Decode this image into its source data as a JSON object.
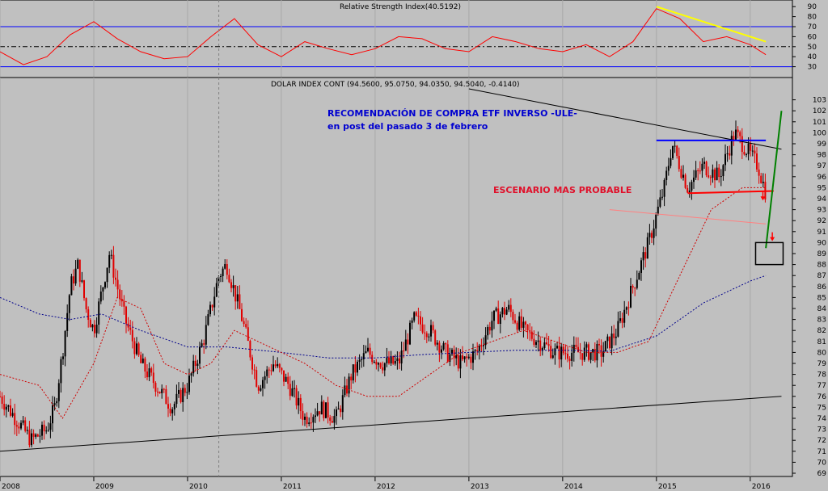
{
  "chart_data": [
    {
      "type": "line",
      "title": "Relative Strength Index(40.5192)",
      "ylim": [
        20,
        95
      ],
      "y_ticks": [
        90,
        80,
        70,
        60,
        50,
        40,
        30
      ],
      "reference_lines": [
        70,
        50,
        30
      ],
      "trendline": {
        "from": [
          "2015-01",
          90
        ],
        "to": [
          "2016-03",
          55
        ],
        "color": "#ffff00"
      },
      "x": [
        "2008-01",
        "2008-04",
        "2008-07",
        "2008-10",
        "2009-01",
        "2009-04",
        "2009-07",
        "2009-10",
        "2010-01",
        "2010-04",
        "2010-07",
        "2010-10",
        "2011-01",
        "2011-04",
        "2011-07",
        "2011-10",
        "2012-01",
        "2012-04",
        "2012-07",
        "2012-10",
        "2013-01",
        "2013-04",
        "2013-07",
        "2013-10",
        "2014-01",
        "2014-04",
        "2014-07",
        "2014-10",
        "2015-01",
        "2015-04",
        "2015-07",
        "2015-10",
        "2016-01",
        "2016-03"
      ],
      "values": [
        45,
        32,
        40,
        62,
        75,
        58,
        45,
        38,
        40,
        60,
        78,
        52,
        40,
        55,
        48,
        42,
        48,
        60,
        58,
        48,
        45,
        60,
        55,
        48,
        45,
        52,
        40,
        55,
        88,
        78,
        55,
        60,
        52,
        42
      ]
    },
    {
      "type": "candlestick",
      "title": "DOLAR INDEX CONT (94.5600, 95.0750, 94.0350, 94.5040, -0.4140)",
      "ylim": [
        69,
        104
      ],
      "y_ticks": [
        103,
        102,
        101,
        100,
        99,
        98,
        97,
        96,
        95,
        94,
        93,
        92,
        91,
        90,
        89,
        88,
        87,
        86,
        85,
        84,
        83,
        82,
        81,
        80,
        79,
        78,
        77,
        76,
        75,
        74,
        73,
        72,
        71,
        70,
        69
      ],
      "x_ticks": [
        "2008",
        "2009",
        "2010",
        "2011",
        "2012",
        "2013",
        "2014",
        "2015",
        "2016"
      ],
      "series": [
        {
          "name": "price",
          "x": [
            "2008-01",
            "2008-03",
            "2008-05",
            "2008-07",
            "2008-08",
            "2008-09",
            "2008-10",
            "2008-11",
            "2008-12",
            "2009-01",
            "2009-03",
            "2009-05",
            "2009-07",
            "2009-09",
            "2009-11",
            "2010-01",
            "2010-03",
            "2010-05",
            "2010-06",
            "2010-08",
            "2010-10",
            "2010-12",
            "2011-02",
            "2011-04",
            "2011-06",
            "2011-08",
            "2011-10",
            "2011-12",
            "2012-02",
            "2012-04",
            "2012-06",
            "2012-08",
            "2012-10",
            "2012-12",
            "2013-02",
            "2013-04",
            "2013-06",
            "2013-08",
            "2013-10",
            "2013-12",
            "2014-02",
            "2014-04",
            "2014-06",
            "2014-08",
            "2014-10",
            "2014-12",
            "2015-02",
            "2015-03",
            "2015-05",
            "2015-07",
            "2015-09",
            "2015-11",
            "2015-12",
            "2016-01",
            "2016-02",
            "2016-03"
          ],
          "values": [
            76,
            74,
            72,
            73,
            75,
            80,
            86,
            88,
            84,
            82,
            89,
            83,
            79,
            77,
            75,
            77,
            81,
            87,
            88,
            83,
            77,
            79,
            77,
            74,
            75,
            74,
            78,
            80,
            79,
            79,
            83,
            82,
            80,
            79,
            80,
            83,
            84,
            82,
            81,
            80,
            80,
            80,
            80,
            82,
            86,
            90,
            95,
            99,
            95,
            97,
            96,
            100,
            99,
            98,
            97,
            94.5
          ]
        },
        {
          "name": "ma_short",
          "x": [
            "2008-01",
            "2008-06",
            "2008-09",
            "2009-01",
            "2009-04",
            "2009-07",
            "2009-10",
            "2010-01",
            "2010-04",
            "2010-07",
            "2010-10",
            "2011-01",
            "2011-04",
            "2011-08",
            "2011-12",
            "2012-04",
            "2012-08",
            "2012-12",
            "2013-04",
            "2013-08",
            "2013-12",
            "2014-04",
            "2014-08",
            "2014-12",
            "2015-04",
            "2015-08",
            "2015-12",
            "2016-03"
          ],
          "values": [
            78,
            77,
            74,
            79,
            85,
            84,
            79,
            78,
            79,
            82,
            81,
            80,
            79,
            77,
            76,
            76,
            78,
            80,
            81,
            82,
            81,
            80,
            80,
            81,
            87,
            93,
            95,
            95
          ]
        },
        {
          "name": "ma_long",
          "x": [
            "2008-01",
            "2008-06",
            "2008-10",
            "2009-02",
            "2009-07",
            "2010-01",
            "2010-06",
            "2011-01",
            "2011-07",
            "2012-01",
            "2012-07",
            "2013-01",
            "2013-07",
            "2014-01",
            "2014-07",
            "2015-01",
            "2015-07",
            "2016-01",
            "2016-03"
          ],
          "values": [
            85,
            83.5,
            83,
            83.5,
            82,
            80.5,
            80.5,
            80,
            79.5,
            79.5,
            79.8,
            80,
            80.2,
            80.2,
            80.1,
            81.5,
            84.5,
            86.5,
            87
          ]
        }
      ],
      "lines": [
        {
          "from": [
            "2008-01",
            71
          ],
          "to": [
            "2016-05",
            76
          ],
          "color": "#000000"
        },
        {
          "from": [
            "2013-01",
            104
          ],
          "to": [
            "2016-05",
            98.5
          ],
          "color": "#000000"
        },
        {
          "from": [
            "2015-01",
            99.3
          ],
          "to": [
            "2016-03",
            99.3
          ],
          "color": "#0000ff"
        },
        {
          "from": [
            "2015-05",
            94.5
          ],
          "to": [
            "2016-04",
            94.7
          ],
          "color": "#ff0000"
        },
        {
          "from": [
            "2014-07",
            93
          ],
          "to": [
            "2016-03",
            91.7
          ],
          "color": "#ff8080"
        },
        {
          "from": [
            "2016-03",
            89.5
          ],
          "to": [
            "2016-05",
            102
          ],
          "color": "#008000"
        }
      ],
      "annotations": [
        {
          "text": "RECOMENDACIÓN DE COMPRA ETF INVERSO -ULE-",
          "color": "#0000d0"
        },
        {
          "text": "en post del pasado 3 de febrero",
          "color": "#0000d0"
        },
        {
          "text": "ESCENARIO MAS PROBABLE",
          "color": "#e0102a"
        }
      ]
    }
  ]
}
